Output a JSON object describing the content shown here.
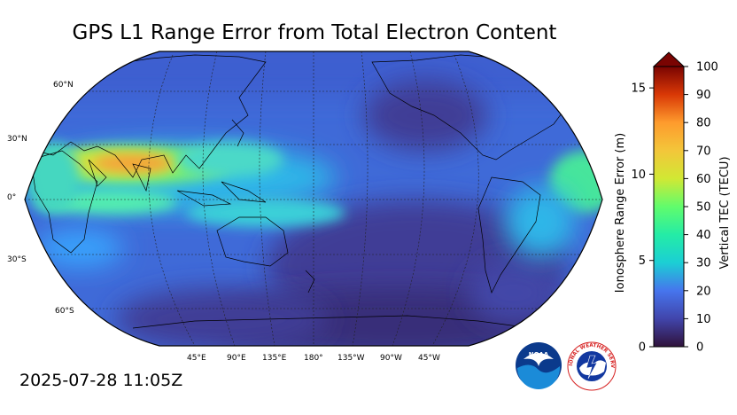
{
  "title": "GPS L1 Range Error from Total Electron Content",
  "timestamp": "2025-07-28 11:05Z",
  "map": {
    "projection": "Robinson",
    "central_longitude": 180,
    "lat_labels": [
      "60°N",
      "30°N",
      "0°",
      "30°S",
      "60°S"
    ],
    "lon_labels": [
      "45°E",
      "90°E",
      "135°E",
      "180°",
      "135°W",
      "90°W",
      "45°W"
    ]
  },
  "colorbar": {
    "left_axis_label": "Ionosphere Range Error (m)",
    "right_axis_label": "Vertical TEC (TECU)",
    "left_ticks": [
      "0",
      "5",
      "10",
      "15"
    ],
    "right_ticks": [
      "0",
      "10",
      "20",
      "30",
      "40",
      "50",
      "60",
      "70",
      "80",
      "90",
      "100"
    ],
    "extend": "max",
    "colormap": [
      "#30123b",
      "#4145ab",
      "#4675ed",
      "#39a2fc",
      "#1bcfd4",
      "#24eca6",
      "#61fc6c",
      "#a4fc3b",
      "#d1e834",
      "#f3c63a",
      "#fe9b2d",
      "#f36315",
      "#d93806",
      "#b11901",
      "#7a0402"
    ]
  },
  "logos": {
    "noaa": "NOAA",
    "nws": "NATIONAL WEATHER SERVICE"
  },
  "colors": {
    "low": "#3b2f80",
    "mid": "#3b7fe6",
    "high": "#f39a2c"
  }
}
